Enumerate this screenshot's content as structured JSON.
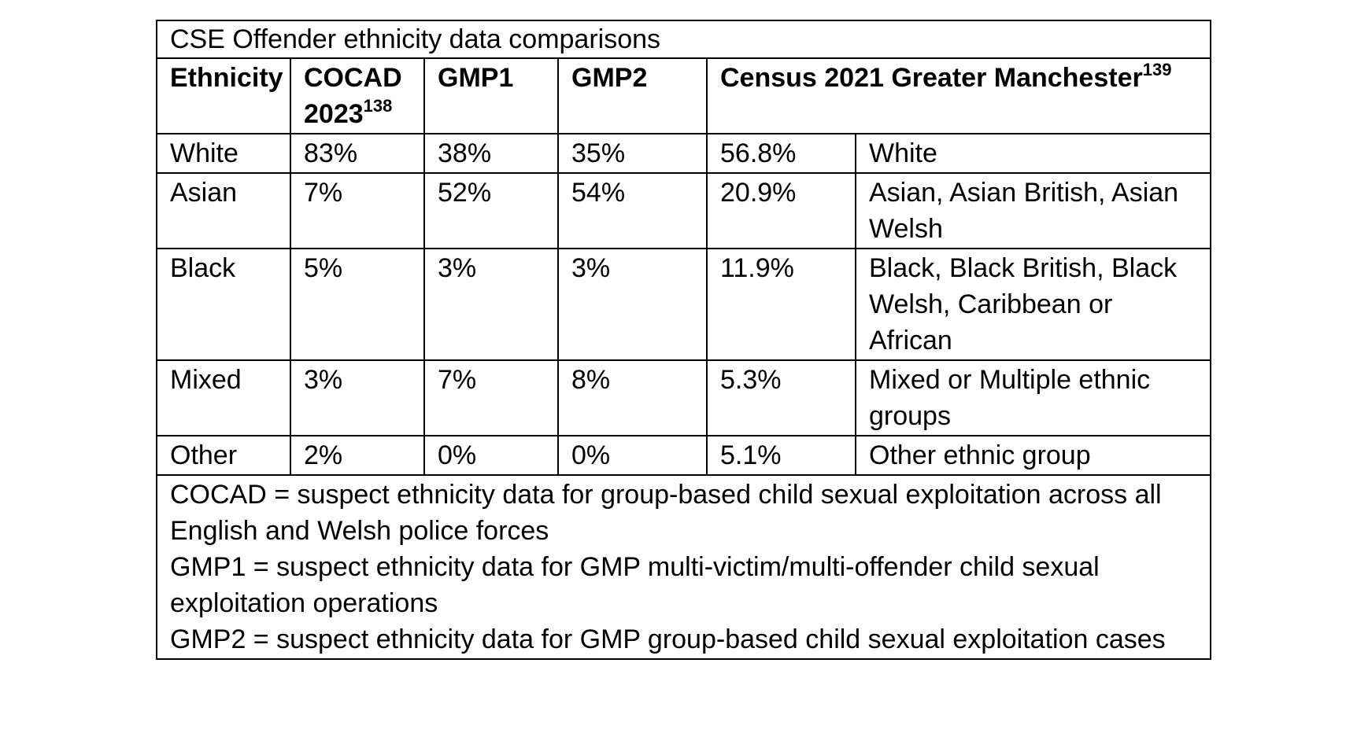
{
  "table": {
    "title": "CSE Offender ethnicity data comparisons",
    "headers": {
      "ethnicity": "Ethnicity",
      "cocad": "COCAD 2023",
      "cocad_ref": "138",
      "gmp1": "GMP1",
      "gmp2": "GMP2",
      "census": "Census 2021 Greater Manchester",
      "census_ref": "139"
    },
    "rows": [
      {
        "ethnicity": "White",
        "cocad": "83%",
        "gmp1": "38%",
        "gmp2": "35%",
        "census": "56.8%",
        "census_group": "White"
      },
      {
        "ethnicity": "Asian",
        "cocad": "7%",
        "gmp1": "52%",
        "gmp2": "54%",
        "census": "20.9%",
        "census_group": "Asian, Asian British, Asian Welsh"
      },
      {
        "ethnicity": "Black",
        "cocad": "5%",
        "gmp1": "3%",
        "gmp2": "3%",
        "census": "11.9%",
        "census_group": "Black, Black British, Black Welsh, Caribbean or African"
      },
      {
        "ethnicity": "Mixed",
        "cocad": "3%",
        "gmp1": "7%",
        "gmp2": "8%",
        "census": "5.3%",
        "census_group": "Mixed or Multiple ethnic groups"
      },
      {
        "ethnicity": "Other",
        "cocad": "2%",
        "gmp1": "0%",
        "gmp2": "0%",
        "census": "5.1%",
        "census_group": "Other ethnic group"
      }
    ],
    "notes": [
      "COCAD = suspect ethnicity data for group-based child sexual exploitation across all English and Welsh police forces",
      "GMP1 = suspect ethnicity data for GMP multi-victim/multi-offender child sexual exploitation operations",
      "GMP2 = suspect ethnicity data for GMP group-based child sexual exploitation cases"
    ]
  }
}
